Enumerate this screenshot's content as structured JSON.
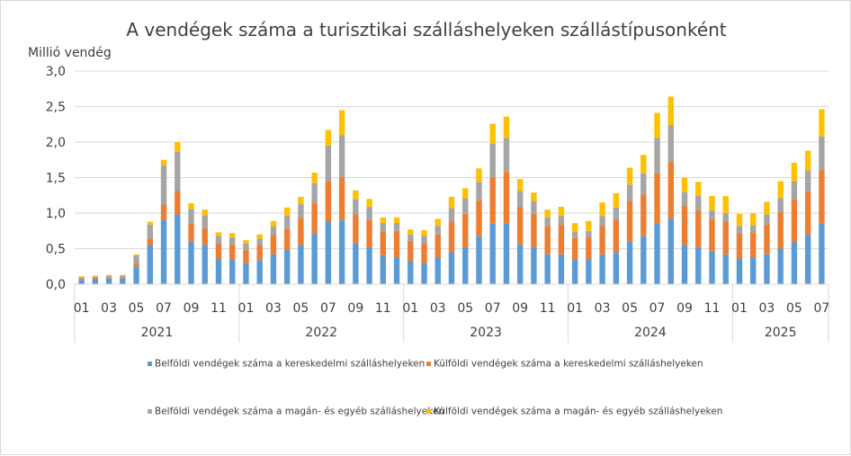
{
  "chart_data": {
    "type": "bar",
    "stacked": true,
    "title": "A vendégek száma a turisztikai szálláshelyeken szállástípusonként",
    "ylabel": "Millió vendég",
    "ylim": [
      0,
      3.0
    ],
    "yticks": [
      "0,0",
      "0,5",
      "1,0",
      "1,5",
      "2,0",
      "2,5",
      "3,0"
    ],
    "grid": true,
    "legend_position": "bottom",
    "years": [
      {
        "label": "2021",
        "months": 12
      },
      {
        "label": "2022",
        "months": 12
      },
      {
        "label": "2023",
        "months": 12
      },
      {
        "label": "2024",
        "months": 12
      },
      {
        "label": "2025",
        "months": 7
      }
    ],
    "month_tick_labels": [
      "01",
      "",
      "03",
      "",
      "05",
      "",
      "07",
      "",
      "09",
      "",
      "11",
      ""
    ],
    "series": [
      {
        "name": "Belföldi vendégek száma a kereskedelmi szálláshelyeken",
        "color": "#5B9BD5",
        "values": [
          0.06,
          0.07,
          0.08,
          0.08,
          0.25,
          0.55,
          0.9,
          0.98,
          0.6,
          0.55,
          0.36,
          0.35,
          0.3,
          0.34,
          0.42,
          0.48,
          0.55,
          0.72,
          0.88,
          0.9,
          0.58,
          0.52,
          0.4,
          0.38,
          0.33,
          0.3,
          0.38,
          0.45,
          0.52,
          0.68,
          0.85,
          0.85,
          0.56,
          0.52,
          0.42,
          0.42,
          0.35,
          0.36,
          0.42,
          0.45,
          0.6,
          0.68,
          0.85,
          0.92,
          0.55,
          0.52,
          0.46,
          0.42,
          0.36,
          0.38,
          0.42,
          0.5,
          0.6,
          0.7,
          0.85
        ]
      },
      {
        "name": "Külföldi vendégek száma a kereskedelmi szálláshelyeken",
        "color": "#ED7D31",
        "values": [
          0.02,
          0.02,
          0.02,
          0.02,
          0.05,
          0.09,
          0.22,
          0.33,
          0.26,
          0.24,
          0.22,
          0.21,
          0.18,
          0.21,
          0.27,
          0.3,
          0.38,
          0.42,
          0.57,
          0.6,
          0.4,
          0.38,
          0.35,
          0.37,
          0.28,
          0.28,
          0.32,
          0.43,
          0.47,
          0.5,
          0.65,
          0.73,
          0.53,
          0.47,
          0.4,
          0.42,
          0.3,
          0.3,
          0.4,
          0.45,
          0.57,
          0.58,
          0.71,
          0.8,
          0.55,
          0.52,
          0.46,
          0.46,
          0.36,
          0.35,
          0.42,
          0.52,
          0.6,
          0.6,
          0.75
        ]
      },
      {
        "name": "Belföldi vendégek száma a magán- és egyéb szálláshelyeken",
        "color": "#A5A5A5",
        "values": [
          0.02,
          0.02,
          0.02,
          0.02,
          0.1,
          0.2,
          0.55,
          0.55,
          0.2,
          0.18,
          0.1,
          0.1,
          0.09,
          0.09,
          0.12,
          0.18,
          0.2,
          0.28,
          0.5,
          0.6,
          0.22,
          0.19,
          0.11,
          0.11,
          0.09,
          0.1,
          0.12,
          0.19,
          0.22,
          0.26,
          0.48,
          0.48,
          0.22,
          0.18,
          0.12,
          0.12,
          0.09,
          0.09,
          0.14,
          0.18,
          0.23,
          0.3,
          0.5,
          0.52,
          0.2,
          0.2,
          0.12,
          0.12,
          0.1,
          0.1,
          0.14,
          0.19,
          0.25,
          0.3,
          0.48
        ]
      },
      {
        "name": "Külföldi vendégek száma a magán- és egyéb szálláshelyeken",
        "color": "#FFC000",
        "values": [
          0.01,
          0.01,
          0.01,
          0.01,
          0.02,
          0.04,
          0.08,
          0.14,
          0.08,
          0.08,
          0.05,
          0.06,
          0.05,
          0.06,
          0.08,
          0.12,
          0.1,
          0.15,
          0.22,
          0.35,
          0.12,
          0.11,
          0.08,
          0.08,
          0.07,
          0.08,
          0.1,
          0.16,
          0.14,
          0.19,
          0.28,
          0.3,
          0.17,
          0.12,
          0.11,
          0.13,
          0.12,
          0.14,
          0.19,
          0.2,
          0.24,
          0.26,
          0.35,
          0.4,
          0.2,
          0.2,
          0.2,
          0.24,
          0.17,
          0.17,
          0.18,
          0.24,
          0.26,
          0.28,
          0.38
        ]
      }
    ]
  }
}
